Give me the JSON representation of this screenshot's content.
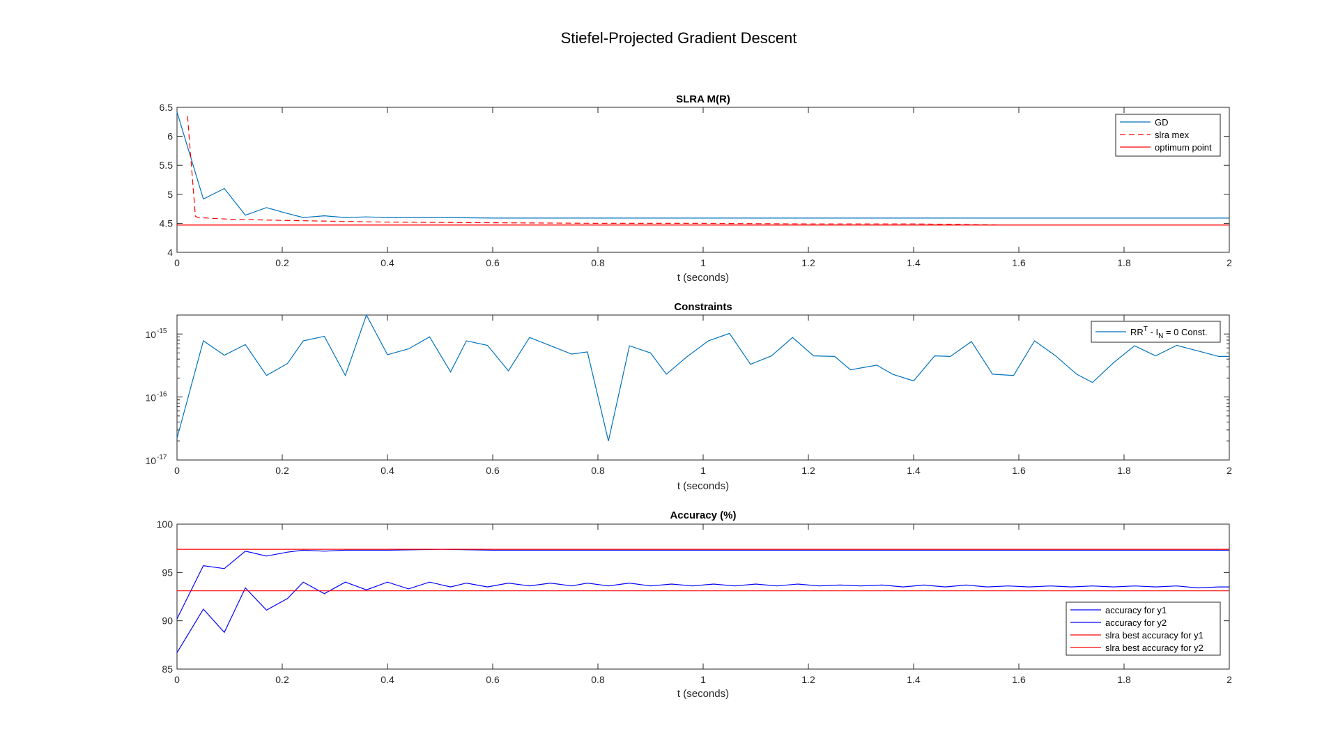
{
  "figure": {
    "title": "Stiefel-Projected Gradient Descent"
  },
  "chart_data": [
    {
      "type": "line",
      "title": "SLRA M(R)",
      "xlabel": "t (seconds)",
      "ylabel": "",
      "xlim": [
        0,
        2
      ],
      "ylim": [
        4,
        6.5
      ],
      "xticks": [
        "0",
        "0.2",
        "0.4",
        "0.6",
        "0.8",
        "1",
        "1.2",
        "1.4",
        "1.6",
        "1.8",
        "2"
      ],
      "yticks": [
        "4",
        "4.5",
        "5",
        "5.5",
        "6",
        "6.5"
      ],
      "grid": false,
      "legend_position": "top-right",
      "series": [
        {
          "name": "GD",
          "color": "#0072BD",
          "style": "solid",
          "x": [
            0,
            0.05,
            0.09,
            0.13,
            0.17,
            0.21,
            0.24,
            0.28,
            0.32,
            0.36,
            0.4,
            0.5,
            0.6,
            0.8,
            1.0,
            1.2,
            1.4,
            1.6,
            1.8,
            2.0
          ],
          "y": [
            6.42,
            4.92,
            5.1,
            4.64,
            4.77,
            4.67,
            4.6,
            4.63,
            4.6,
            4.61,
            4.6,
            4.6,
            4.59,
            4.59,
            4.59,
            4.59,
            4.59,
            4.59,
            4.59,
            4.59
          ]
        },
        {
          "name": "slra mex",
          "color": "#FF0000",
          "style": "dashed",
          "x": [
            0.02,
            0.035,
            0.04,
            0.1,
            0.2,
            0.4,
            0.6,
            0.8,
            1.0,
            1.2,
            1.4,
            1.5,
            1.56
          ],
          "y": [
            6.35,
            4.62,
            4.6,
            4.57,
            4.55,
            4.52,
            4.51,
            4.5,
            4.5,
            4.49,
            4.49,
            4.48,
            4.47
          ]
        },
        {
          "name": "optimum point",
          "color": "#FF0000",
          "style": "solid",
          "x": [
            0,
            2
          ],
          "y": [
            4.47,
            4.47
          ]
        }
      ]
    },
    {
      "type": "line",
      "title": "Constraints",
      "xlabel": "t (seconds)",
      "ylabel": "",
      "yscale": "log",
      "xlim": [
        0,
        2
      ],
      "ylim": [
        1e-17,
        2e-15
      ],
      "xticks": [
        "0",
        "0.2",
        "0.4",
        "0.6",
        "0.8",
        "1",
        "1.2",
        "1.4",
        "1.6",
        "1.8",
        "2"
      ],
      "yticks": [
        {
          "base": "10",
          "exp": "-15",
          "value": 1e-15
        },
        {
          "base": "10",
          "exp": "-16",
          "value": 1e-16
        },
        {
          "base": "10",
          "exp": "-17",
          "value": 1e-17
        }
      ],
      "grid": false,
      "legend_position": "top-right",
      "legend_label": {
        "a": "RR",
        "a_sup": "T",
        "b": " - I",
        "b_sub": "N",
        "c": " = 0 Const."
      },
      "series": [
        {
          "name": "RRT - IN = 0 Const.",
          "color": "#0072BD",
          "style": "solid",
          "x": [
            0,
            0.05,
            0.09,
            0.13,
            0.17,
            0.21,
            0.24,
            0.28,
            0.32,
            0.36,
            0.4,
            0.44,
            0.48,
            0.52,
            0.55,
            0.59,
            0.63,
            0.67,
            0.71,
            0.75,
            0.78,
            0.82,
            0.86,
            0.9,
            0.93,
            0.97,
            1.01,
            1.05,
            1.09,
            1.13,
            1.17,
            1.21,
            1.25,
            1.28,
            1.33,
            1.36,
            1.4,
            1.44,
            1.47,
            1.51,
            1.55,
            1.59,
            1.63,
            1.67,
            1.71,
            1.74,
            1.78,
            1.82,
            1.86,
            1.9,
            1.94,
            1.98,
            2.0
          ],
          "y": [
            2.2e-17,
            7.8e-16,
            4.6e-16,
            6.8e-16,
            2.2e-16,
            3.4e-16,
            7.8e-16,
            9.2e-16,
            2.2e-16,
            2e-15,
            4.7e-16,
            5.8e-16,
            9e-16,
            2.5e-16,
            7.8e-16,
            6.6e-16,
            2.6e-16,
            8.8e-16,
            6.5e-16,
            4.8e-16,
            5.2e-16,
            2e-17,
            6.5e-16,
            5e-16,
            2.3e-16,
            4.4e-16,
            7.8e-16,
            1.02e-15,
            3.3e-16,
            4.5e-16,
            8.8e-16,
            4.5e-16,
            4.4e-16,
            2.7e-16,
            3.2e-16,
            2.3e-16,
            1.8e-16,
            4.5e-16,
            4.4e-16,
            7.6e-16,
            2.3e-16,
            2.2e-16,
            7.8e-16,
            4.5e-16,
            2.3e-16,
            1.7e-16,
            3.5e-16,
            6.5e-16,
            4.5e-16,
            6.6e-16,
            5.4e-16,
            4.4e-16,
            4.4e-16
          ]
        }
      ]
    },
    {
      "type": "line",
      "title": "Accuracy (%)",
      "xlabel": "t (seconds)",
      "ylabel": "",
      "xlim": [
        0,
        2
      ],
      "ylim": [
        85,
        100
      ],
      "xticks": [
        "0",
        "0.2",
        "0.4",
        "0.6",
        "0.8",
        "1",
        "1.2",
        "1.4",
        "1.6",
        "1.8",
        "2"
      ],
      "yticks": [
        "85",
        "90",
        "95",
        "100"
      ],
      "grid": false,
      "legend_position": "bottom-right",
      "series": [
        {
          "name": "accuracy for y1",
          "color": "#0000FF",
          "style": "solid",
          "x": [
            0,
            0.05,
            0.09,
            0.13,
            0.17,
            0.21,
            0.24,
            0.28,
            0.32,
            0.36,
            0.4,
            0.5,
            0.6,
            0.8,
            1.0,
            1.2,
            1.4,
            1.6,
            1.8,
            2.0
          ],
          "y": [
            90.2,
            95.7,
            95.4,
            97.2,
            96.7,
            97.1,
            97.3,
            97.2,
            97.3,
            97.3,
            97.3,
            97.4,
            97.3,
            97.3,
            97.3,
            97.3,
            97.3,
            97.3,
            97.3,
            97.3
          ]
        },
        {
          "name": "accuracy for y2",
          "color": "#0000FF",
          "style": "solid",
          "x": [
            0,
            0.05,
            0.09,
            0.13,
            0.17,
            0.21,
            0.24,
            0.28,
            0.32,
            0.36,
            0.4,
            0.44,
            0.48,
            0.52,
            0.55,
            0.59,
            0.63,
            0.67,
            0.71,
            0.75,
            0.78,
            0.82,
            0.86,
            0.9,
            0.94,
            0.98,
            1.02,
            1.06,
            1.1,
            1.14,
            1.18,
            1.22,
            1.26,
            1.3,
            1.34,
            1.38,
            1.42,
            1.46,
            1.5,
            1.54,
            1.58,
            1.62,
            1.66,
            1.7,
            1.74,
            1.78,
            1.82,
            1.86,
            1.9,
            1.94,
            1.98,
            2.0
          ],
          "y": [
            86.7,
            91.2,
            88.8,
            93.4,
            91.1,
            92.3,
            94.0,
            92.8,
            94.0,
            93.2,
            94.0,
            93.3,
            94.0,
            93.5,
            93.9,
            93.5,
            93.9,
            93.6,
            93.9,
            93.6,
            93.9,
            93.6,
            93.9,
            93.6,
            93.8,
            93.6,
            93.8,
            93.6,
            93.8,
            93.6,
            93.8,
            93.6,
            93.7,
            93.6,
            93.7,
            93.5,
            93.7,
            93.5,
            93.7,
            93.5,
            93.6,
            93.5,
            93.6,
            93.5,
            93.6,
            93.5,
            93.6,
            93.5,
            93.6,
            93.4,
            93.5,
            93.5
          ]
        },
        {
          "name": "slra best accuracy for y1",
          "color": "#FF0000",
          "style": "solid",
          "x": [
            0,
            2
          ],
          "y": [
            97.4,
            97.4
          ]
        },
        {
          "name": "slra best accuracy for y2",
          "color": "#FF0000",
          "style": "solid",
          "x": [
            0,
            2
          ],
          "y": [
            93.1,
            93.1
          ]
        }
      ]
    }
  ]
}
